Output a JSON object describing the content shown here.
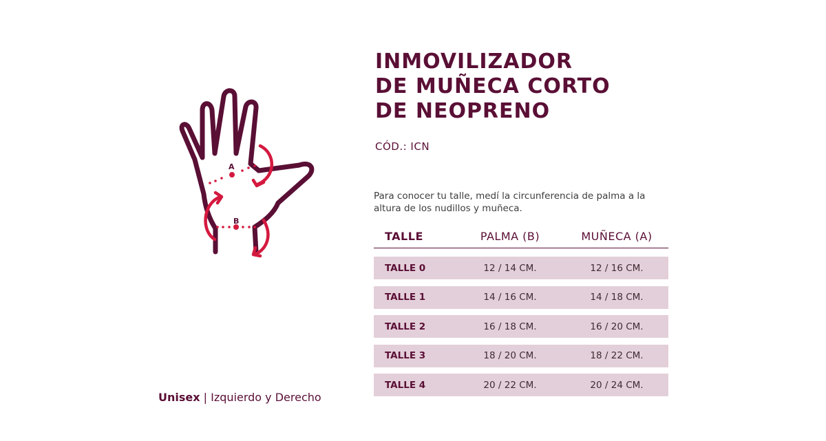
{
  "product": {
    "title_lines": [
      "INMOVILIZADOR",
      "DE MUÑECA CORTO",
      "DE NEOPRENO"
    ],
    "code": "CÓD.: ICN"
  },
  "figure": {
    "label_a": "A",
    "label_b": "B",
    "colors": {
      "outline": "#5a0f35",
      "arrows": "#d4193f"
    }
  },
  "instructions": "Para conocer tu talle, medí la circunferencia de palma a la altura de los nudillos y muñeca.",
  "size_table": {
    "headers": {
      "talle": "TALLE",
      "palma": "PALMA (B)",
      "muneca": "MUÑECA (A)"
    },
    "rows": [
      {
        "talle": "TALLE 0",
        "palma": "12 / 14 CM.",
        "muneca": "12 / 16 CM."
      },
      {
        "talle": "TALLE 1",
        "palma": "14 / 16 CM.",
        "muneca": "14 / 18 CM."
      },
      {
        "talle": "TALLE 2",
        "palma": "16 / 18 CM.",
        "muneca": "16 / 20 CM."
      },
      {
        "talle": "TALLE 3",
        "palma": "18 / 20 CM.",
        "muneca": "18 / 22 CM."
      },
      {
        "talle": "TALLE 4",
        "palma": "20 / 22 CM.",
        "muneca": "20 / 24 CM."
      }
    ]
  },
  "footer": {
    "bold": "Unisex",
    "separator": "|",
    "rest": "Izquierdo y Derecho"
  },
  "colors": {
    "brand": "#5a0f35",
    "row_bg": "#e3cfd9",
    "accent": "#d4193f"
  }
}
